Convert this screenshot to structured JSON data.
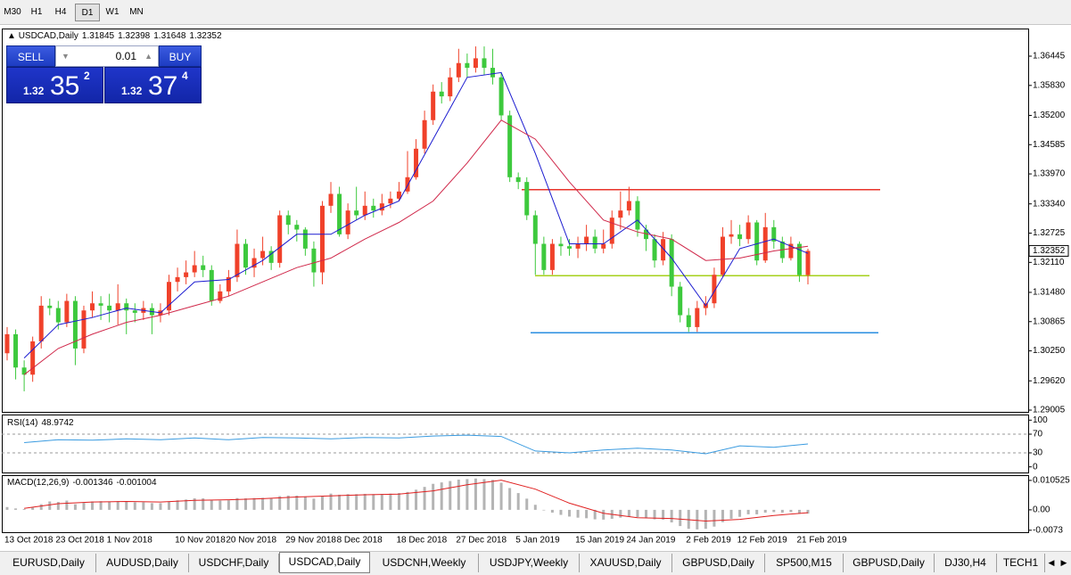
{
  "toolbar": {
    "timeframes": [
      "M30",
      "H1",
      "H4",
      "D1",
      "W1",
      "MN"
    ],
    "active": 3
  },
  "trade_panel": {
    "sell": "SELL",
    "lot": "0.01",
    "buy": "BUY",
    "bid": [
      "1.32",
      "35",
      "2"
    ],
    "ask": [
      "1.32",
      "37",
      "4"
    ]
  },
  "tabs": {
    "items": [
      "EURUSD,Daily",
      "AUDUSD,Daily",
      "USDCHF,Daily",
      "USDCAD,Daily",
      "USDCNH,Weekly",
      "USDJPY,Weekly",
      "XAUUSD,Daily",
      "GBPUSD,Daily",
      "SP500,M15",
      "GBPUSD,Daily",
      "DJ30,H4",
      "TECH1"
    ],
    "active": 3
  },
  "chart_data": [
    {
      "type": "candlestick",
      "symbol": "USDCAD,Daily",
      "categories": [
        "13 Oct 2018",
        null,
        null,
        null,
        null,
        null,
        "23 Oct 2018",
        null,
        null,
        null,
        null,
        null,
        "1 Nov 2018",
        null,
        null,
        null,
        null,
        null,
        null,
        null,
        "10 Nov 2018",
        null,
        null,
        null,
        null,
        null,
        "20 Nov 2018",
        null,
        null,
        null,
        null,
        null,
        null,
        "29 Nov 2018",
        null,
        null,
        null,
        null,
        null,
        "8 Dec 2018",
        null,
        null,
        null,
        null,
        null,
        null,
        "18 Dec 2018",
        null,
        null,
        null,
        null,
        null,
        null,
        "27 Dec 2018",
        null,
        null,
        null,
        null,
        null,
        null,
        "5 Jan 2019",
        null,
        null,
        null,
        null,
        null,
        null,
        "15 Jan 2019",
        null,
        null,
        null,
        null,
        null,
        "24 Jan 2019",
        null,
        null,
        null,
        null,
        null,
        null,
        "2 Feb 2019",
        null,
        null,
        null,
        null,
        null,
        "12 Feb 2019",
        null,
        null,
        null,
        null,
        null,
        null,
        "21 Feb 2019",
        null
      ],
      "open": [
        1.302,
        1.306,
        1.299,
        1.2975,
        1.3045,
        1.312,
        1.3115,
        1.3085,
        1.313,
        1.303,
        1.311,
        1.3125,
        1.312,
        1.311,
        1.3125,
        1.311,
        1.3105,
        1.3115,
        1.31,
        1.311,
        1.317,
        1.318,
        1.319,
        1.3205,
        1.3195,
        1.313,
        1.315,
        1.318,
        1.325,
        1.32,
        1.322,
        1.3235,
        1.321,
        1.331,
        1.329,
        1.328,
        1.324,
        1.319,
        1.333,
        1.3355,
        1.327,
        1.332,
        1.331,
        1.333,
        1.332,
        1.3335,
        1.3345,
        1.336,
        1.339,
        1.345,
        1.351,
        1.357,
        1.356,
        1.36,
        1.363,
        1.362,
        1.364,
        1.362,
        1.36,
        1.352,
        1.339,
        1.338,
        1.331,
        1.325,
        1.3195,
        1.325,
        1.3245,
        1.324,
        1.325,
        1.3265,
        1.324,
        1.325,
        1.3305,
        1.332,
        1.334,
        1.328,
        1.326,
        1.3215,
        1.326,
        1.316,
        1.31,
        1.3075,
        1.3115,
        1.3125,
        1.3185,
        1.3265,
        1.327,
        1.326,
        1.3295,
        1.3215,
        1.3285,
        1.3255,
        1.322,
        1.325,
        1.31845
      ],
      "high": [
        1.3075,
        1.307,
        1.3005,
        1.3055,
        1.314,
        1.3135,
        1.313,
        1.3145,
        1.314,
        1.312,
        1.315,
        1.314,
        1.3145,
        1.3165,
        1.3135,
        1.3125,
        1.313,
        1.3125,
        1.3125,
        1.3185,
        1.32,
        1.3215,
        1.3235,
        1.3225,
        1.3205,
        1.3165,
        1.3195,
        1.328,
        1.326,
        1.324,
        1.3265,
        1.3245,
        1.332,
        1.332,
        1.33,
        1.3285,
        1.3255,
        1.334,
        1.338,
        1.337,
        1.3335,
        1.337,
        1.336,
        1.3345,
        1.3355,
        1.336,
        1.338,
        1.3445,
        1.347,
        1.353,
        1.3585,
        1.359,
        1.362,
        1.366,
        1.365,
        1.3665,
        1.3665,
        1.366,
        1.361,
        1.353,
        1.34,
        1.339,
        1.332,
        1.3265,
        1.326,
        1.3265,
        1.326,
        1.3265,
        1.329,
        1.328,
        1.328,
        1.332,
        1.336,
        1.337,
        1.335,
        1.329,
        1.327,
        1.3275,
        1.327,
        1.317,
        1.3115,
        1.313,
        1.314,
        1.32,
        1.3285,
        1.33,
        1.329,
        1.331,
        1.33,
        1.3315,
        1.33,
        1.3265,
        1.3265,
        1.3255,
        1.32398
      ],
      "low": [
        1.3005,
        1.2965,
        1.294,
        1.296,
        1.303,
        1.31,
        1.307,
        1.3075,
        1.2995,
        1.302,
        1.3095,
        1.309,
        1.3085,
        1.308,
        1.306,
        1.3085,
        1.309,
        1.306,
        1.3085,
        1.31,
        1.315,
        1.3165,
        1.318,
        1.318,
        1.312,
        1.3125,
        1.314,
        1.317,
        1.3185,
        1.318,
        1.3205,
        1.3195,
        1.32,
        1.327,
        1.3255,
        1.3225,
        1.316,
        1.3165,
        1.3315,
        1.3265,
        1.326,
        1.33,
        1.33,
        1.3305,
        1.331,
        1.3325,
        1.334,
        1.3355,
        1.3385,
        1.344,
        1.35,
        1.3545,
        1.355,
        1.359,
        1.36,
        1.361,
        1.3605,
        1.3585,
        1.351,
        1.338,
        1.3365,
        1.33,
        1.3185,
        1.3185,
        1.3185,
        1.3225,
        1.3225,
        1.322,
        1.3235,
        1.323,
        1.323,
        1.324,
        1.328,
        1.331,
        1.3265,
        1.3235,
        1.32,
        1.3205,
        1.314,
        1.3085,
        1.3065,
        1.3065,
        1.31,
        1.3115,
        1.318,
        1.325,
        1.3245,
        1.325,
        1.3205,
        1.321,
        1.324,
        1.321,
        1.3215,
        1.317,
        1.31648
      ],
      "close": [
        1.306,
        1.299,
        1.2975,
        1.3045,
        1.312,
        1.3115,
        1.3085,
        1.313,
        1.303,
        1.311,
        1.3125,
        1.312,
        1.311,
        1.3125,
        1.311,
        1.3105,
        1.3115,
        1.31,
        1.311,
        1.317,
        1.318,
        1.319,
        1.3205,
        1.3195,
        1.313,
        1.315,
        1.318,
        1.325,
        1.32,
        1.322,
        1.3235,
        1.321,
        1.331,
        1.329,
        1.328,
        1.324,
        1.319,
        1.333,
        1.3355,
        1.327,
        1.332,
        1.331,
        1.333,
        1.332,
        1.3335,
        1.3345,
        1.336,
        1.339,
        1.345,
        1.351,
        1.357,
        1.356,
        1.36,
        1.363,
        1.362,
        1.364,
        1.362,
        1.36,
        1.352,
        1.339,
        1.338,
        1.331,
        1.325,
        1.3195,
        1.325,
        1.3245,
        1.324,
        1.325,
        1.3265,
        1.324,
        1.325,
        1.3305,
        1.332,
        1.334,
        1.328,
        1.326,
        1.3215,
        1.326,
        1.316,
        1.31,
        1.3075,
        1.3115,
        1.3125,
        1.3185,
        1.3265,
        1.327,
        1.326,
        1.3295,
        1.3215,
        1.3285,
        1.3255,
        1.322,
        1.325,
        1.31845,
        1.32352
      ],
      "up_color": "#f0412a",
      "down_color": "#3dc93d",
      "series": [
        {
          "color": "#1c1cd0",
          "x": [
            2,
            6,
            10,
            14,
            18,
            22,
            26,
            30,
            34,
            38,
            42,
            46,
            50,
            54,
            58,
            62,
            66,
            70,
            74,
            78,
            82,
            86,
            90,
            94
          ],
          "values": [
            1.301,
            1.308,
            1.3095,
            1.3115,
            1.3105,
            1.317,
            1.3175,
            1.3215,
            1.327,
            1.327,
            1.331,
            1.334,
            1.347,
            1.36,
            1.361,
            1.344,
            1.325,
            1.325,
            1.33,
            1.322,
            1.312,
            1.324,
            1.326,
            1.323
          ]
        },
        {
          "color": "#d0284a",
          "x": [
            2,
            6,
            10,
            14,
            18,
            22,
            26,
            30,
            34,
            38,
            42,
            46,
            50,
            54,
            58,
            62,
            66,
            70,
            74,
            78,
            82,
            86,
            90,
            94
          ],
          "values": [
            1.2975,
            1.303,
            1.306,
            1.3085,
            1.31,
            1.312,
            1.314,
            1.317,
            1.32,
            1.322,
            1.326,
            1.3295,
            1.334,
            1.342,
            1.351,
            1.347,
            1.338,
            1.33,
            1.3275,
            1.326,
            1.3215,
            1.322,
            1.3235,
            1.3245
          ]
        }
      ],
      "levels": [
        {
          "value": 1.3364,
          "color": "#e8332a"
        },
        {
          "value": 1.3183,
          "color": "#a6d11c"
        },
        {
          "value": 1.3063,
          "color": "#2a8ee0"
        }
      ],
      "ylim": [
        1.28968,
        1.37026
      ],
      "yticks": [
        1.36445,
        {
          "value": 1.3583,
          "label": "1.35830"
        },
        {
          "value": 1.352,
          "label": "1.35200"
        },
        1.34585,
        {
          "value": 1.3397,
          "label": "1.33970"
        },
        {
          "value": 1.3334,
          "label": "1.33340"
        },
        1.32725,
        {
          "value": 1.3211,
          "label": "1.32110"
        },
        {
          "value": 1.3148,
          "label": "1.31480"
        },
        1.30865,
        {
          "value": 1.3025,
          "label": "1.30250"
        },
        {
          "value": 1.2962,
          "label": "1.29620"
        },
        1.29005
      ]
    },
    {
      "type": "line",
      "title": "RSI(14)",
      "series": [
        {
          "color": "#3a9be0",
          "x": [
            2,
            6,
            10,
            14,
            18,
            22,
            26,
            30,
            34,
            38,
            42,
            46,
            50,
            54,
            58,
            62,
            66,
            70,
            74,
            78,
            82,
            86,
            90,
            94
          ],
          "values": [
            52,
            58,
            57,
            60,
            58,
            62,
            58,
            63,
            62,
            60,
            63,
            62,
            66,
            68,
            65,
            34,
            30,
            36,
            40,
            36,
            28,
            45,
            42,
            48.9742
          ]
        }
      ],
      "ylim": [
        -12,
        112
      ],
      "yticks": [
        100,
        70,
        30,
        0
      ]
    },
    {
      "type": "bar",
      "title": "MACD(12,26,9)",
      "color": "#b4b4b4",
      "values": [
        0.001,
        0.0005,
        0.0003,
        0.0008,
        0.002,
        0.003,
        0.0028,
        0.0033,
        0.002,
        0.0025,
        0.003,
        0.0031,
        0.003,
        0.0031,
        0.0029,
        0.0027,
        0.0027,
        0.0024,
        0.0024,
        0.003,
        0.0034,
        0.0037,
        0.0041,
        0.0041,
        0.0035,
        0.0033,
        0.0034,
        0.0042,
        0.0041,
        0.0042,
        0.0043,
        0.0041,
        0.0049,
        0.0051,
        0.0051,
        0.0047,
        0.004,
        0.005,
        0.0058,
        0.0054,
        0.0056,
        0.0056,
        0.0057,
        0.0056,
        0.0057,
        0.0058,
        0.006,
        0.0064,
        0.0072,
        0.0082,
        0.0093,
        0.0098,
        0.0103,
        0.0108,
        0.011,
        0.0112,
        0.011,
        0.0107,
        0.0097,
        0.0078,
        0.006,
        0.004,
        0.0018,
        -0.0002,
        -0.001,
        -0.0018,
        -0.0024,
        -0.0028,
        -0.003,
        -0.0034,
        -0.0035,
        -0.0032,
        -0.0028,
        -0.0024,
        -0.0026,
        -0.0029,
        -0.0034,
        -0.0035,
        -0.0045,
        -0.0058,
        -0.0068,
        -0.007,
        -0.0068,
        -0.006,
        -0.0044,
        -0.0032,
        -0.0025,
        -0.0016,
        -0.0016,
        -0.001,
        -0.0008,
        -0.001,
        -0.0008,
        -0.0014,
        -0.001346
      ],
      "series": [
        {
          "color": "#e02020",
          "x": [
            2,
            6,
            10,
            14,
            18,
            22,
            26,
            30,
            34,
            38,
            42,
            46,
            50,
            54,
            58,
            62,
            66,
            70,
            74,
            78,
            82,
            86,
            90,
            94
          ],
          "values": [
            0.0005,
            0.0022,
            0.0028,
            0.003,
            0.0028,
            0.0034,
            0.0036,
            0.004,
            0.0046,
            0.005,
            0.0054,
            0.0056,
            0.0068,
            0.009,
            0.0106,
            0.0074,
            0.0024,
            -0.0012,
            -0.0028,
            -0.0031,
            -0.004,
            -0.0034,
            -0.002,
            -0.001004
          ]
        }
      ],
      "ylim": [
        -0.008,
        0.0124
      ],
      "yticks": [
        0.010525,
        {
          "value": 0,
          "label": "0.00"
        },
        -0.0073
      ]
    }
  ]
}
